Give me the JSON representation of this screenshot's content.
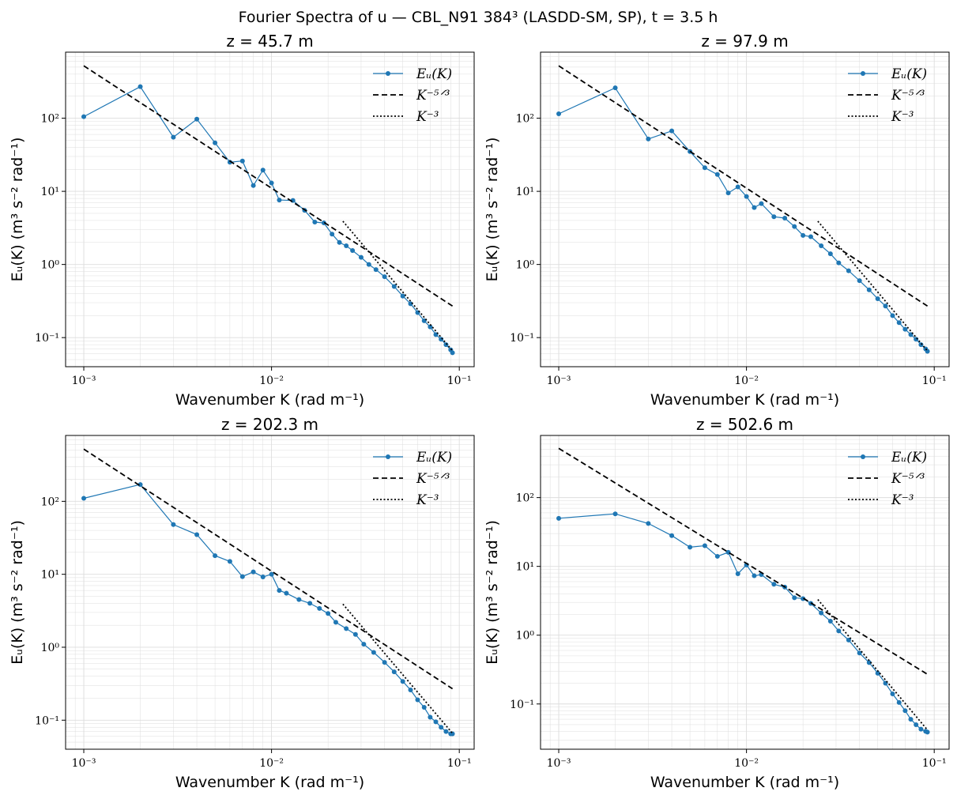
{
  "figure": {
    "title": "Fourier Spectra of u — CBL_N91 384³ (LASDD-SM, SP), t = 3.5 h"
  },
  "colors": {
    "spectrum": "#1f77b4",
    "reference": "#000000",
    "grid": "#dddddd"
  },
  "chart_data": [
    {
      "type": "line",
      "title": "z = 45.7 m",
      "xlabel": "Wavenumber K (rad m⁻¹)",
      "ylabel": "Eᵤ(K) (m³ s⁻² rad⁻¹)",
      "xscale": "log",
      "yscale": "log",
      "xlim": [
        0.0008,
        0.12
      ],
      "ylim": [
        0.04,
        800
      ],
      "xticks": [
        "10⁻³",
        "10⁻²",
        "10⁻¹"
      ],
      "yticks": [
        "10⁻¹",
        "10⁰",
        "10¹",
        "10²"
      ],
      "grid": true,
      "legend_position": "top-right",
      "series": [
        {
          "name": "Eᵤ(K)",
          "style": "line-markers",
          "x": [
            0.001,
            0.002,
            0.003,
            0.004,
            0.005,
            0.006,
            0.007,
            0.008,
            0.009,
            0.01,
            0.011,
            0.013,
            0.015,
            0.017,
            0.019,
            0.021,
            0.023,
            0.025,
            0.027,
            0.03,
            0.033,
            0.036,
            0.04,
            0.045,
            0.05,
            0.055,
            0.06,
            0.065,
            0.07,
            0.075,
            0.08,
            0.085,
            0.09,
            0.092
          ],
          "y": [
            105,
            270,
            55,
            97,
            46,
            25,
            26,
            12,
            19.5,
            13,
            7.6,
            7.5,
            5.5,
            3.8,
            3.7,
            2.6,
            2.0,
            1.8,
            1.55,
            1.25,
            1.0,
            0.85,
            0.68,
            0.5,
            0.37,
            0.29,
            0.22,
            0.17,
            0.14,
            0.11,
            0.095,
            0.08,
            0.068,
            0.062
          ]
        },
        {
          "name": "K⁻⁵ᐟ³",
          "style": "dashed",
          "x": [
            0.001,
            0.092
          ],
          "y": [
            520,
            0.27
          ]
        },
        {
          "name": "K⁻³",
          "style": "dotted",
          "x": [
            0.024,
            0.092
          ],
          "y": [
            3.9,
            0.066
          ]
        }
      ]
    },
    {
      "type": "line",
      "title": "z = 97.9 m",
      "xlabel": "Wavenumber K (rad m⁻¹)",
      "ylabel": "Eᵤ(K) (m³ s⁻² rad⁻¹)",
      "xscale": "log",
      "yscale": "log",
      "xlim": [
        0.0008,
        0.12
      ],
      "ylim": [
        0.04,
        800
      ],
      "xticks": [
        "10⁻³",
        "10⁻²",
        "10⁻¹"
      ],
      "yticks": [
        "10⁻¹",
        "10⁰",
        "10¹",
        "10²"
      ],
      "grid": true,
      "legend_position": "top-right",
      "series": [
        {
          "name": "Eᵤ(K)",
          "style": "line-markers",
          "x": [
            0.001,
            0.002,
            0.003,
            0.004,
            0.005,
            0.006,
            0.007,
            0.008,
            0.009,
            0.01,
            0.011,
            0.012,
            0.014,
            0.016,
            0.018,
            0.02,
            0.022,
            0.025,
            0.028,
            0.031,
            0.035,
            0.04,
            0.045,
            0.05,
            0.055,
            0.06,
            0.065,
            0.07,
            0.075,
            0.08,
            0.085,
            0.09,
            0.092
          ],
          "y": [
            115,
            260,
            52,
            67,
            35,
            21,
            17,
            9.5,
            11.5,
            8.5,
            6.0,
            6.8,
            4.5,
            4.3,
            3.3,
            2.5,
            2.4,
            1.8,
            1.4,
            1.05,
            0.82,
            0.6,
            0.45,
            0.34,
            0.27,
            0.2,
            0.16,
            0.13,
            0.11,
            0.095,
            0.08,
            0.07,
            0.065
          ]
        },
        {
          "name": "K⁻⁵ᐟ³",
          "style": "dashed",
          "x": [
            0.001,
            0.092
          ],
          "y": [
            520,
            0.27
          ]
        },
        {
          "name": "K⁻³",
          "style": "dotted",
          "x": [
            0.024,
            0.092
          ],
          "y": [
            3.9,
            0.066
          ]
        }
      ]
    },
    {
      "type": "line",
      "title": "z = 202.3 m",
      "xlabel": "Wavenumber K (rad m⁻¹)",
      "ylabel": "Eᵤ(K) (m³ s⁻² rad⁻¹)",
      "xscale": "log",
      "yscale": "log",
      "xlim": [
        0.0008,
        0.12
      ],
      "ylim": [
        0.04,
        800
      ],
      "xticks": [
        "10⁻³",
        "10⁻²",
        "10⁻¹"
      ],
      "yticks": [
        "10⁻¹",
        "10⁰",
        "10¹",
        "10²"
      ],
      "grid": true,
      "legend_position": "top-right",
      "series": [
        {
          "name": "Eᵤ(K)",
          "style": "line-markers",
          "x": [
            0.001,
            0.002,
            0.003,
            0.004,
            0.005,
            0.006,
            0.007,
            0.008,
            0.009,
            0.01,
            0.011,
            0.012,
            0.014,
            0.016,
            0.018,
            0.02,
            0.022,
            0.025,
            0.028,
            0.031,
            0.035,
            0.04,
            0.045,
            0.05,
            0.055,
            0.06,
            0.065,
            0.07,
            0.075,
            0.08,
            0.085,
            0.09,
            0.092
          ],
          "y": [
            110,
            170,
            48,
            35,
            18,
            15,
            9.3,
            10.8,
            9.2,
            10,
            6.0,
            5.5,
            4.5,
            4.0,
            3.4,
            2.9,
            2.2,
            1.8,
            1.5,
            1.1,
            0.85,
            0.62,
            0.46,
            0.34,
            0.26,
            0.19,
            0.15,
            0.11,
            0.095,
            0.08,
            0.07,
            0.065,
            0.065
          ]
        },
        {
          "name": "K⁻⁵ᐟ³",
          "style": "dashed",
          "x": [
            0.001,
            0.092
          ],
          "y": [
            520,
            0.27
          ]
        },
        {
          "name": "K⁻³",
          "style": "dotted",
          "x": [
            0.024,
            0.092
          ],
          "y": [
            3.9,
            0.066
          ]
        }
      ]
    },
    {
      "type": "line",
      "title": "z = 502.6 m",
      "xlabel": "Wavenumber K (rad m⁻¹)",
      "ylabel": "Eᵤ(K) (m³ s⁻² rad⁻¹)",
      "xscale": "log",
      "yscale": "log",
      "xlim": [
        0.0008,
        0.12
      ],
      "ylim": [
        0.022,
        800
      ],
      "xticks": [
        "10⁻³",
        "10⁻²",
        "10⁻¹"
      ],
      "yticks": [
        "10⁻¹",
        "10⁰",
        "10¹",
        "10²"
      ],
      "grid": true,
      "legend_position": "top-right",
      "series": [
        {
          "name": "Eᵤ(K)",
          "style": "line-markers",
          "x": [
            0.001,
            0.002,
            0.003,
            0.004,
            0.005,
            0.006,
            0.007,
            0.008,
            0.009,
            0.01,
            0.011,
            0.012,
            0.014,
            0.016,
            0.018,
            0.02,
            0.022,
            0.025,
            0.028,
            0.031,
            0.035,
            0.04,
            0.045,
            0.05,
            0.055,
            0.06,
            0.065,
            0.07,
            0.075,
            0.08,
            0.085,
            0.09,
            0.092
          ],
          "y": [
            50,
            58,
            42,
            28,
            19,
            20,
            14,
            16,
            7.8,
            10.5,
            7.3,
            7.6,
            5.5,
            5.0,
            3.5,
            3.4,
            2.9,
            2.1,
            1.6,
            1.15,
            0.85,
            0.55,
            0.4,
            0.28,
            0.2,
            0.14,
            0.105,
            0.08,
            0.06,
            0.05,
            0.043,
            0.04,
            0.039
          ]
        },
        {
          "name": "K⁻⁵ᐟ³",
          "style": "dashed",
          "x": [
            0.001,
            0.092
          ],
          "y": [
            520,
            0.27
          ]
        },
        {
          "name": "K⁻³",
          "style": "dotted",
          "x": [
            0.024,
            0.092
          ],
          "y": [
            3.3,
            0.042
          ]
        }
      ]
    }
  ]
}
